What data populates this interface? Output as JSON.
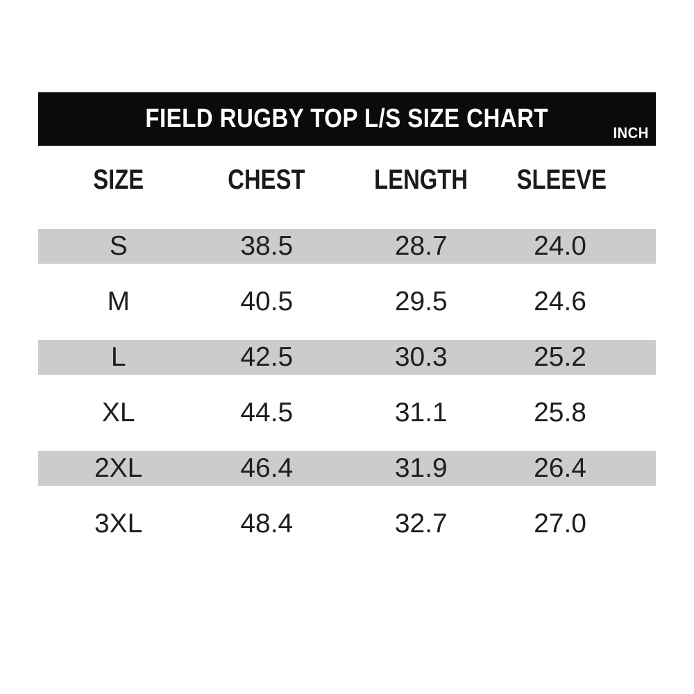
{
  "header": {
    "title": "FIELD RUGBY TOP L/S SIZE CHART",
    "unit_label": "INCH"
  },
  "table": {
    "columns": [
      "SIZE",
      "CHEST",
      "LENGTH",
      "SLEEVE"
    ],
    "rows": [
      {
        "size": "S",
        "chest": "38.5",
        "length": "28.7",
        "sleeve": "24.0"
      },
      {
        "size": "M",
        "chest": "40.5",
        "length": "29.5",
        "sleeve": "24.6"
      },
      {
        "size": "L",
        "chest": "42.5",
        "length": "30.3",
        "sleeve": "25.2"
      },
      {
        "size": "XL",
        "chest": "44.5",
        "length": "31.1",
        "sleeve": "25.8"
      },
      {
        "size": "2XL",
        "chest": "46.4",
        "length": "31.9",
        "sleeve": "26.4"
      },
      {
        "size": "3XL",
        "chest": "48.4",
        "length": "32.7",
        "sleeve": "27.0"
      }
    ]
  },
  "colors": {
    "title_bar_bg": "#0b0b0b",
    "title_text": "#ffffff",
    "stripe_row_bg": "#cccccc",
    "body_text": "#1e1e1e",
    "page_bg": "#ffffff"
  }
}
